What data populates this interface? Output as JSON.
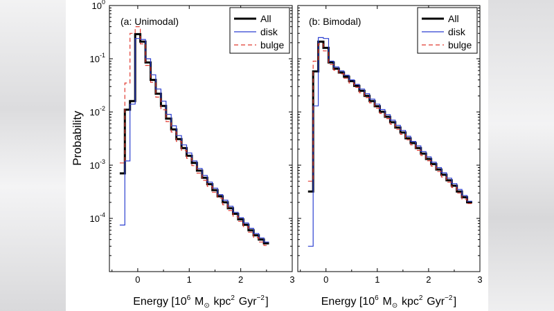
{
  "chart_data": [
    {
      "type": "line",
      "title": "(a: Unimodal)",
      "xlabel": "Energy [10^6 M_⊙ kpc^2 Gyr^-2]",
      "ylabel": "Probability",
      "xlim": [
        -0.55,
        3
      ],
      "ylim": [
        1e-05,
        1
      ],
      "yscale": "log",
      "grid": false,
      "legend_position": "top-right",
      "legend": [
        "All",
        "disk",
        "bulge"
      ],
      "x_ticks": [
        "0",
        "1",
        "2",
        "3"
      ],
      "y_ticks": [
        "10^-4",
        "10^-3",
        "10^-2",
        "10^-1",
        "10^0"
      ],
      "bin_edges": [
        -0.35,
        -0.25,
        -0.15,
        -0.05,
        0.05,
        0.15,
        0.25,
        0.35,
        0.45,
        0.55,
        0.65,
        0.75,
        0.85,
        0.95,
        1.05,
        1.15,
        1.25,
        1.35,
        1.45,
        1.55,
        1.65,
        1.75,
        1.85,
        1.95,
        2.05,
        2.15,
        2.25,
        2.35,
        2.45,
        2.55,
        2.65,
        2.75,
        2.85,
        2.95,
        3.05
      ],
      "series": [
        {
          "name": "All",
          "color": "#000000",
          "values": [
            0.0007,
            0.011,
            0.016,
            0.29,
            0.21,
            0.085,
            0.04,
            0.022,
            0.013,
            0.0075,
            0.0047,
            0.0031,
            0.0021,
            0.0015,
            0.0011,
            0.00079,
            0.00058,
            0.00044,
            0.00034,
            0.00026,
            0.0002,
            0.000155,
            0.000122,
            9.6e-05,
            7.6e-05,
            6e-05,
            4.8e-05,
            4e-05,
            3.4e-05
          ]
        },
        {
          "name": "disk",
          "color": "#2b3fd0",
          "values": [
            7.5e-05,
            0.0012,
            0.014,
            0.24,
            0.23,
            0.1,
            0.05,
            0.027,
            0.016,
            0.009,
            0.0055,
            0.0036,
            0.0024,
            0.0017,
            0.0012,
            0.00087,
            0.00064,
            0.00048,
            0.00037,
            0.00028,
            0.00022,
            0.00017,
            0.00013,
            0.000103,
            8.2e-05,
            6.5e-05,
            5.2e-05,
            4.3e-05,
            3.6e-05
          ]
        },
        {
          "name": "bulge",
          "color": "#e0392f",
          "values": [
            0.0011,
            0.035,
            0.3,
            0.4,
            0.19,
            0.075,
            0.036,
            0.019,
            0.011,
            0.0066,
            0.0042,
            0.0028,
            0.0019,
            0.00135,
            0.00098,
            0.00071,
            0.00052,
            0.0004,
            0.00031,
            0.00024,
            0.00018,
            0.00014,
            0.00011,
            8.8e-05,
            7e-05,
            5.5e-05,
            4.4e-05,
            3.6e-05,
            3.1e-05
          ]
        }
      ]
    },
    {
      "type": "line",
      "title": "(b: Bimodal)",
      "xlabel": "Energy [10^6 M_⊙ kpc^2 Gyr^-2]",
      "ylabel": "",
      "xlim": [
        -0.55,
        3
      ],
      "ylim": [
        1e-05,
        1
      ],
      "yscale": "log",
      "grid": false,
      "legend_position": "top-right",
      "legend": [
        "All",
        "disk",
        "bulge"
      ],
      "x_ticks": [
        "0",
        "1",
        "2",
        "3"
      ],
      "bin_edges": [
        -0.35,
        -0.25,
        -0.15,
        -0.05,
        0.05,
        0.15,
        0.25,
        0.35,
        0.45,
        0.55,
        0.65,
        0.75,
        0.85,
        0.95,
        1.05,
        1.15,
        1.25,
        1.35,
        1.45,
        1.55,
        1.65,
        1.75,
        1.85,
        1.95,
        2.05,
        2.15,
        2.25,
        2.35,
        2.45,
        2.55,
        2.65,
        2.75,
        2.85,
        2.95,
        3.05
      ],
      "series": [
        {
          "name": "All",
          "color": "#000000",
          "values": [
            0.00032,
            0.058,
            0.21,
            0.16,
            0.085,
            0.065,
            0.055,
            0.046,
            0.038,
            0.031,
            0.025,
            0.02,
            0.016,
            0.0128,
            0.0101,
            0.0081,
            0.0064,
            0.0051,
            0.0041,
            0.0032,
            0.0026,
            0.0021,
            0.00165,
            0.00131,
            0.00105,
            0.00083,
            0.00066,
            0.00052,
            0.00041,
            0.00032,
            0.00025,
            0.0002
          ]
        },
        {
          "name": "disk",
          "color": "#2b3fd0",
          "values": [
            3e-05,
            0.013,
            0.25,
            0.24,
            0.09,
            0.07,
            0.059,
            0.049,
            0.04,
            0.033,
            0.027,
            0.022,
            0.0175,
            0.014,
            0.0111,
            0.0089,
            0.007,
            0.0056,
            0.0045,
            0.0035,
            0.0028,
            0.0023,
            0.0018,
            0.00143,
            0.00114,
            0.0009,
            0.00072,
            0.00057,
            0.00045,
            0.00035,
            0.00027,
            0.00021
          ]
        },
        {
          "name": "bulge",
          "color": "#e0392f",
          "values": [
            0.0005,
            0.09,
            0.19,
            0.14,
            0.078,
            0.061,
            0.052,
            0.043,
            0.035,
            0.029,
            0.023,
            0.0185,
            0.0148,
            0.0118,
            0.0094,
            0.0075,
            0.0059,
            0.0047,
            0.0038,
            0.003,
            0.0024,
            0.0019,
            0.00152,
            0.00121,
            0.00096,
            0.00076,
            0.0006,
            0.00048,
            0.00038,
            0.0003,
            0.00023,
            0.00019
          ]
        }
      ]
    }
  ]
}
